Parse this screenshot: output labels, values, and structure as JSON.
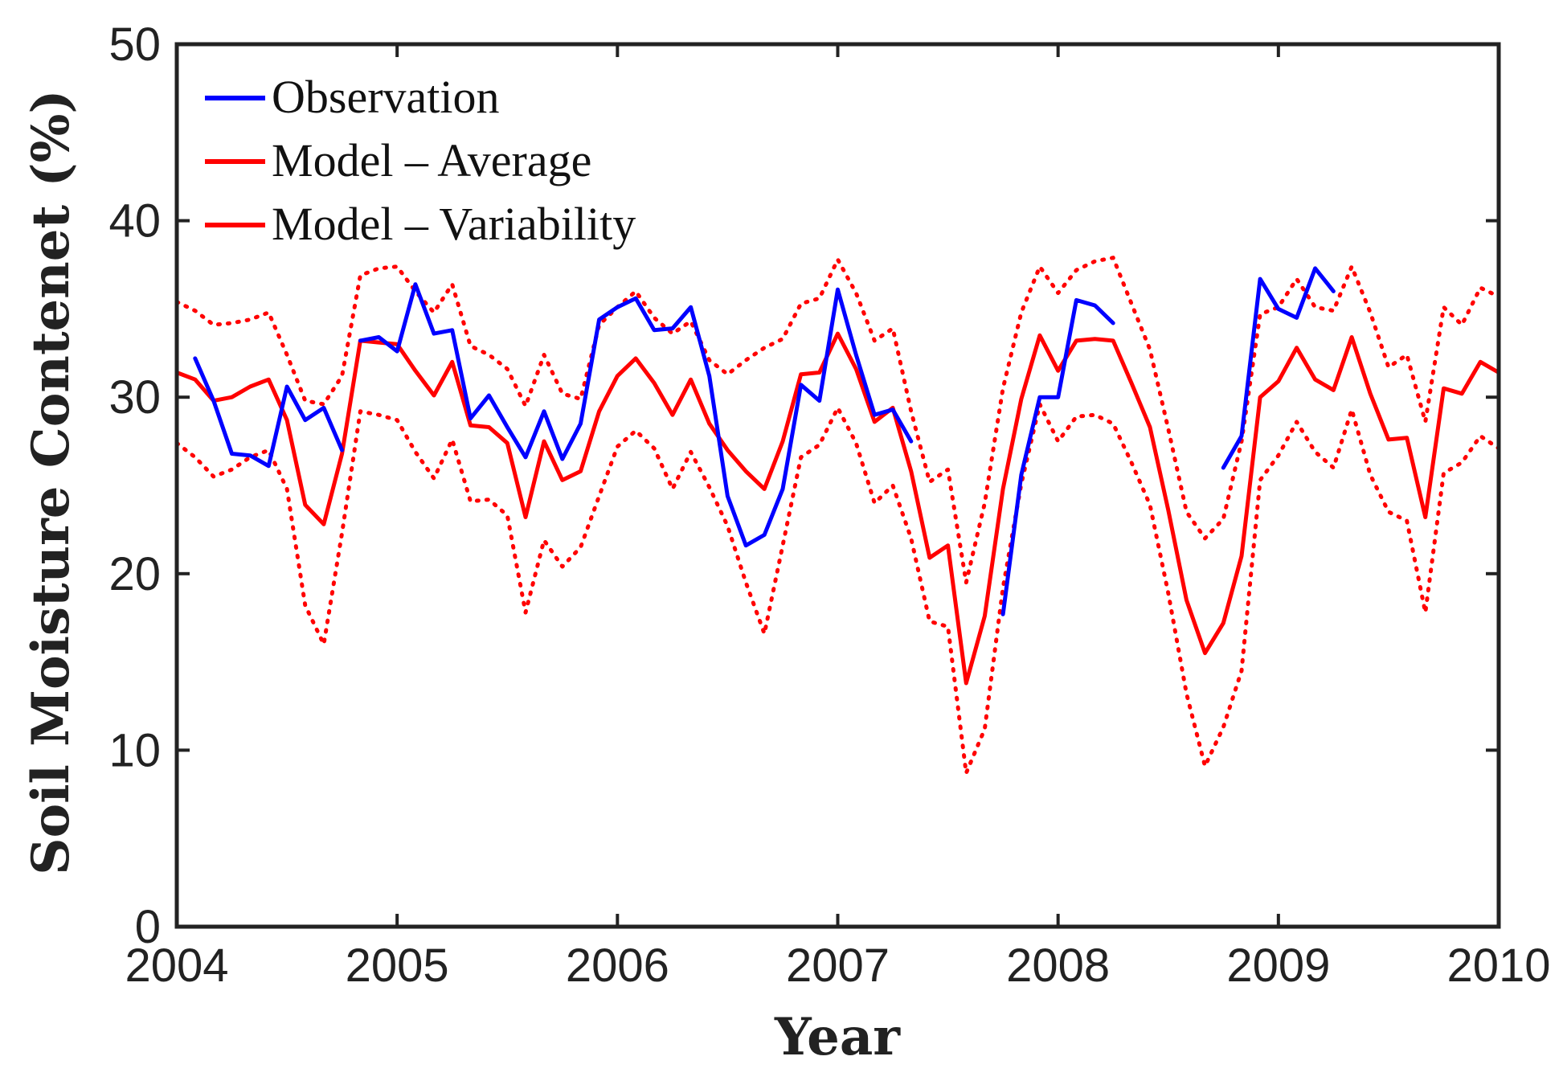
{
  "chart_data": {
    "type": "line",
    "title": "",
    "xlabel": "Year",
    "ylabel": "Soil Moisture Contenet (%)",
    "xlim": [
      2004,
      2010
    ],
    "ylim": [
      0,
      50
    ],
    "xticks": [
      "2004",
      "2005",
      "2006",
      "2007",
      "2008",
      "2009",
      "2010"
    ],
    "yticks": [
      "0",
      "10",
      "20",
      "30",
      "40",
      "50"
    ],
    "grid": false,
    "legend_position": "top-left",
    "colors": {
      "observation": "#0000ff",
      "model": "#ff0000",
      "axis": "#222222"
    },
    "series": [
      {
        "name": "Observation",
        "style": "solid",
        "color": "#0000ff",
        "legend": true,
        "x": [
          2004.083,
          2004.167,
          2004.25,
          2004.333,
          2004.417,
          2004.5,
          2004.583,
          2004.667,
          2004.75,
          null,
          2004.833,
          2004.917,
          2005.0,
          2005.083,
          2005.167,
          2005.25,
          2005.333,
          2005.417,
          2005.5,
          2005.583,
          2005.667,
          2005.75,
          2005.833,
          2005.917,
          2006.0,
          2006.083,
          2006.167,
          2006.25,
          2006.333,
          2006.417,
          2006.5,
          2006.583,
          2006.667,
          2006.75,
          2006.833,
          2006.917,
          2007.0,
          2007.083,
          2007.167,
          2007.25,
          2007.333,
          null,
          2007.75,
          2007.833,
          2007.917,
          2008.0,
          2008.083,
          2008.167,
          2008.25,
          null,
          2008.75,
          2008.833,
          2008.917,
          2009.0,
          2009.083,
          2009.167,
          2009.25
        ],
        "values": [
          32.2,
          29.8,
          26.8,
          26.7,
          26.1,
          30.6,
          28.7,
          29.4,
          27.0,
          null,
          33.2,
          33.4,
          32.6,
          36.4,
          33.6,
          33.8,
          28.8,
          30.1,
          28.3,
          26.6,
          29.2,
          26.5,
          28.5,
          34.4,
          35.1,
          35.6,
          33.8,
          33.9,
          35.1,
          31.2,
          24.4,
          21.6,
          22.2,
          24.8,
          30.7,
          29.8,
          36.1,
          32.4,
          29.0,
          29.3,
          27.5,
          null,
          17.7,
          25.6,
          30.0,
          30.0,
          35.5,
          35.2,
          34.2,
          null,
          26.0,
          27.8,
          36.7,
          35.0,
          34.5,
          37.3,
          36.0
        ]
      },
      {
        "name": "Model – Average",
        "style": "solid",
        "color": "#ff0000",
        "legend": true,
        "x": [
          2004.0,
          2004.083,
          2004.167,
          2004.25,
          2004.333,
          2004.417,
          2004.5,
          2004.583,
          2004.667,
          2004.75,
          2004.833,
          2004.917,
          2005.0,
          2005.083,
          2005.167,
          2005.25,
          2005.333,
          2005.417,
          2005.5,
          2005.583,
          2005.667,
          2005.75,
          2005.833,
          2005.917,
          2006.0,
          2006.083,
          2006.167,
          2006.25,
          2006.333,
          2006.417,
          2006.5,
          2006.583,
          2006.667,
          2006.75,
          2006.833,
          2006.917,
          2007.0,
          2007.083,
          2007.167,
          2007.25,
          2007.333,
          2007.417,
          2007.5,
          2007.583,
          2007.667,
          2007.75,
          2007.833,
          2007.917,
          2008.0,
          2008.083,
          2008.167,
          2008.25,
          2008.333,
          2008.417,
          2008.5,
          2008.583,
          2008.667,
          2008.75,
          2008.833,
          2008.917,
          2009.0,
          2009.083,
          2009.167,
          2009.25,
          2009.333,
          2009.417,
          2009.5,
          2009.583,
          2009.667,
          2009.75,
          2009.833,
          2009.917,
          2010.0
        ],
        "values": [
          31.4,
          31.0,
          29.8,
          30.0,
          30.6,
          31.0,
          28.7,
          23.9,
          22.8,
          26.8,
          33.2,
          33.1,
          33.0,
          31.5,
          30.1,
          32.0,
          28.4,
          28.3,
          27.4,
          23.2,
          27.5,
          25.3,
          25.8,
          29.2,
          31.2,
          32.2,
          30.8,
          29.0,
          31.0,
          28.5,
          27.0,
          25.8,
          24.8,
          27.5,
          31.3,
          31.4,
          33.6,
          31.6,
          28.6,
          29.4,
          25.8,
          20.9,
          21.6,
          13.8,
          17.6,
          24.8,
          29.9,
          33.5,
          31.5,
          33.2,
          33.3,
          33.2,
          30.8,
          28.3,
          23.6,
          18.5,
          15.5,
          17.2,
          21.0,
          30.0,
          30.9,
          32.8,
          31.0,
          30.4,
          33.4,
          30.2,
          27.6,
          27.7,
          23.2,
          30.5,
          30.2,
          32.0,
          31.4
        ]
      },
      {
        "name": "Model – Variability",
        "style": "dotted",
        "color": "#ff0000",
        "legend": true,
        "x": [
          2004.0,
          2004.083,
          2004.167,
          2004.25,
          2004.333,
          2004.417,
          2004.5,
          2004.583,
          2004.667,
          2004.75,
          2004.833,
          2004.917,
          2005.0,
          2005.083,
          2005.167,
          2005.25,
          2005.333,
          2005.417,
          2005.5,
          2005.583,
          2005.667,
          2005.75,
          2005.833,
          2005.917,
          2006.0,
          2006.083,
          2006.167,
          2006.25,
          2006.333,
          2006.417,
          2006.5,
          2006.583,
          2006.667,
          2006.75,
          2006.833,
          2006.917,
          2007.0,
          2007.083,
          2007.167,
          2007.25,
          2007.333,
          2007.417,
          2007.5,
          2007.583,
          2007.667,
          2007.75,
          2007.833,
          2007.917,
          2008.0,
          2008.083,
          2008.167,
          2008.25,
          2008.333,
          2008.417,
          2008.5,
          2008.583,
          2008.667,
          2008.75,
          2008.833,
          2008.917,
          2009.0,
          2009.083,
          2009.167,
          2009.25,
          2009.333,
          2009.417,
          2009.5,
          2009.583,
          2009.667,
          2009.75,
          2009.833,
          2009.917,
          2010.0
        ],
        "values": [
          35.4,
          34.9,
          34.1,
          34.2,
          34.4,
          34.8,
          32.4,
          29.8,
          29.6,
          31.2,
          36.9,
          37.3,
          37.4,
          36.0,
          34.8,
          36.4,
          32.9,
          32.4,
          31.6,
          29.5,
          32.4,
          30.2,
          29.9,
          34.1,
          35.1,
          36.0,
          34.5,
          33.6,
          34.3,
          32.1,
          31.3,
          32.1,
          32.8,
          33.3,
          35.3,
          35.6,
          37.8,
          35.9,
          33.2,
          33.9,
          29.2,
          25.2,
          25.9,
          19.5,
          24.0,
          30.5,
          34.8,
          37.4,
          35.9,
          37.2,
          37.7,
          37.9,
          35.3,
          32.7,
          28.2,
          23.5,
          22.0,
          23.1,
          27.5,
          34.7,
          35.1,
          36.7,
          35.1,
          34.9,
          37.4,
          34.8,
          31.7,
          32.4,
          28.6,
          35.1,
          34.1,
          36.2,
          35.7
        ]
      },
      {
        "name": "Model – Variability (lower)",
        "style": "dotted",
        "color": "#ff0000",
        "legend": false,
        "x": [
          2004.0,
          2004.083,
          2004.167,
          2004.25,
          2004.333,
          2004.417,
          2004.5,
          2004.583,
          2004.667,
          2004.75,
          2004.833,
          2004.917,
          2005.0,
          2005.083,
          2005.167,
          2005.25,
          2005.333,
          2005.417,
          2005.5,
          2005.583,
          2005.667,
          2005.75,
          2005.833,
          2005.917,
          2006.0,
          2006.083,
          2006.167,
          2006.25,
          2006.333,
          2006.417,
          2006.5,
          2006.583,
          2006.667,
          2006.75,
          2006.833,
          2006.917,
          2007.0,
          2007.083,
          2007.167,
          2007.25,
          2007.333,
          2007.417,
          2007.5,
          2007.583,
          2007.667,
          2007.75,
          2007.833,
          2007.917,
          2008.0,
          2008.083,
          2008.167,
          2008.25,
          2008.333,
          2008.417,
          2008.5,
          2008.583,
          2008.667,
          2008.75,
          2008.833,
          2008.917,
          2009.0,
          2009.083,
          2009.167,
          2009.25,
          2009.333,
          2009.417,
          2009.5,
          2009.583,
          2009.667,
          2009.75,
          2009.833,
          2009.917,
          2010.0
        ],
        "values": [
          27.4,
          26.6,
          25.5,
          25.9,
          26.6,
          27.0,
          24.8,
          18.2,
          16.0,
          22.3,
          29.2,
          29.0,
          28.7,
          26.9,
          25.4,
          27.6,
          24.1,
          24.2,
          23.3,
          17.8,
          21.9,
          20.4,
          21.5,
          24.4,
          27.2,
          28.1,
          27.1,
          24.8,
          26.9,
          24.9,
          22.7,
          19.5,
          16.6,
          21.6,
          26.6,
          27.3,
          29.4,
          27.4,
          24.0,
          25.0,
          22.0,
          17.3,
          17.0,
          8.7,
          11.2,
          19.2,
          25.1,
          29.6,
          27.5,
          28.9,
          29.0,
          28.5,
          26.3,
          23.9,
          18.9,
          13.2,
          9.1,
          11.3,
          14.5,
          25.3,
          26.7,
          28.6,
          26.9,
          26.0,
          29.3,
          25.6,
          23.5,
          23.0,
          17.8,
          25.7,
          26.3,
          27.8,
          27.1
        ]
      }
    ]
  }
}
